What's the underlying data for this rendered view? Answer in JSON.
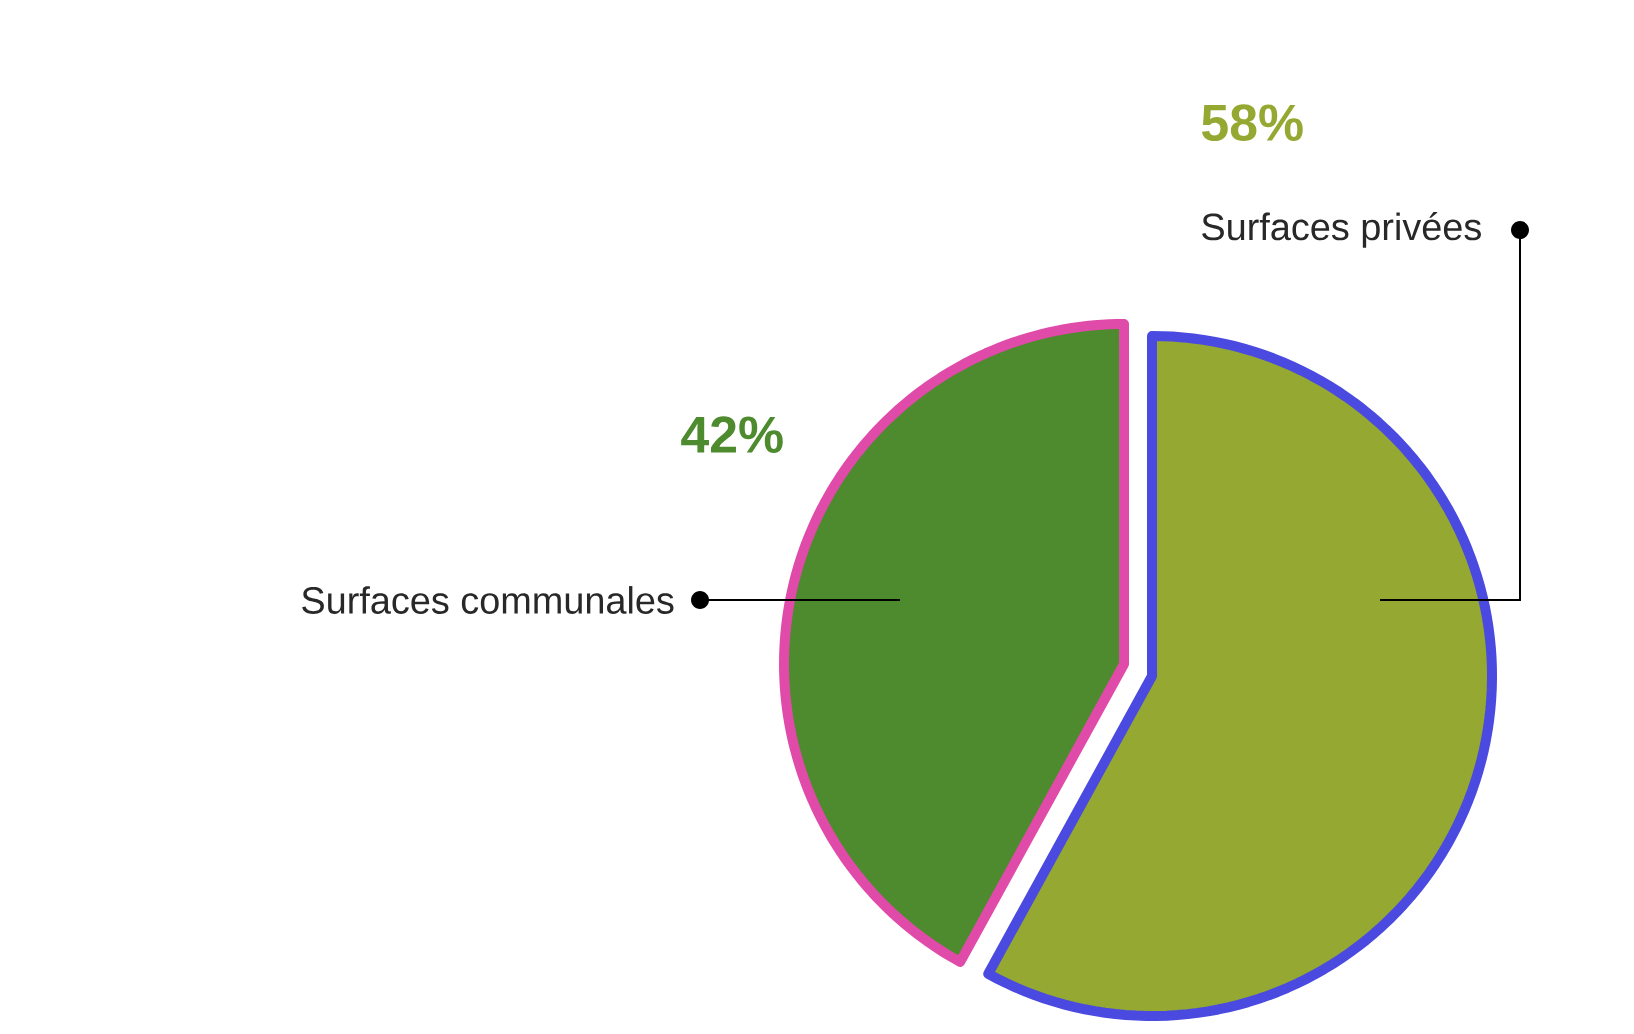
{
  "chart_data": {
    "type": "pie",
    "categories": [
      "Surfaces communales",
      "Surfaces privées"
    ],
    "values": [
      42,
      58
    ],
    "value_labels": [
      "42%",
      "58%"
    ],
    "colors": [
      "#4e8a2e",
      "#94a832"
    ]
  }
}
